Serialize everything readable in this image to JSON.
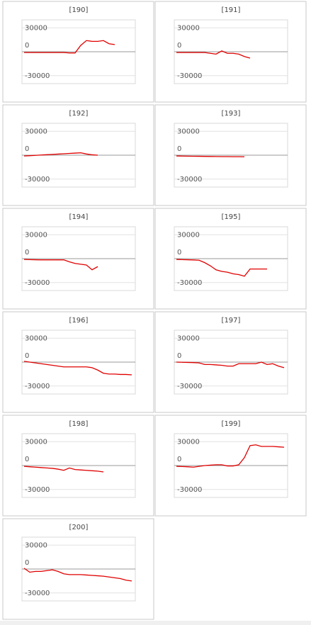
{
  "chart_data": [
    {
      "type": "line",
      "title": "[190]",
      "ylim": [
        -40000,
        40000
      ],
      "yticks": [
        30000,
        0,
        -30000
      ],
      "grid": true,
      "color": "#e00000",
      "values": [
        -1000,
        -1000,
        -1000,
        -1000,
        -1000,
        -1000,
        -1000,
        -1000,
        -1500,
        -1500,
        8000,
        14000,
        13000,
        13000,
        14000,
        10000,
        9000
      ]
    },
    {
      "type": "line",
      "title": "[191]",
      "ylim": [
        -40000,
        40000
      ],
      "yticks": [
        30000,
        0,
        -30000
      ],
      "grid": true,
      "color": "#e00000",
      "values": [
        -1000,
        -1000,
        -1000,
        -1000,
        -1000,
        -1000,
        -2000,
        -3000,
        1000,
        -2000,
        -2000,
        -3000,
        -6000,
        -8000
      ]
    },
    {
      "type": "line",
      "title": "[192]",
      "ylim": [
        -40000,
        40000
      ],
      "yticks": [
        30000,
        0,
        -30000
      ],
      "grid": true,
      "color": "#e00000",
      "values": [
        -1000,
        -600,
        -200,
        200,
        600,
        1000,
        1400,
        1800,
        2200,
        2600,
        3000,
        1500,
        500,
        0
      ]
    },
    {
      "type": "line",
      "title": "[193]",
      "ylim": [
        -40000,
        40000
      ],
      "yticks": [
        30000,
        0,
        -30000
      ],
      "grid": true,
      "color": "#e00000",
      "values": [
        -1000,
        -1100,
        -1200,
        -1300,
        -1400,
        -1500,
        -1600,
        -1700,
        -1800,
        -1800,
        -1900,
        -1900,
        -2000
      ]
    },
    {
      "type": "line",
      "title": "[194]",
      "ylim": [
        -40000,
        40000
      ],
      "yticks": [
        30000,
        0,
        -30000
      ],
      "grid": true,
      "color": "#e00000",
      "values": [
        -1000,
        -1200,
        -1400,
        -1500,
        -1500,
        -1500,
        -1500,
        -1500,
        -4000,
        -6000,
        -7000,
        -8000,
        -14000,
        -10000
      ]
    },
    {
      "type": "line",
      "title": "[195]",
      "ylim": [
        -40000,
        40000
      ],
      "yticks": [
        30000,
        0,
        -30000
      ],
      "grid": true,
      "color": "#e00000",
      "values": [
        -1000,
        -1200,
        -1400,
        -1600,
        -2000,
        -5000,
        -9000,
        -14000,
        -16000,
        -17000,
        -19000,
        -20000,
        -22000,
        -13000,
        -13000,
        -13000,
        -13000
      ]
    },
    {
      "type": "line",
      "title": "[196]",
      "ylim": [
        -40000,
        40000
      ],
      "yticks": [
        30000,
        0,
        -30000
      ],
      "grid": true,
      "color": "#e00000",
      "values": [
        1000,
        0,
        -1000,
        -2000,
        -3000,
        -4000,
        -5000,
        -6000,
        -6000,
        -6000,
        -6000,
        -6000,
        -7000,
        -10000,
        -14000,
        -15000,
        -15000,
        -15500,
        -15500,
        -16000
      ]
    },
    {
      "type": "line",
      "title": "[197]",
      "ylim": [
        -40000,
        40000
      ],
      "yticks": [
        30000,
        0,
        -30000
      ],
      "grid": true,
      "color": "#e00000",
      "values": [
        0,
        -200,
        -400,
        -600,
        -1000,
        -3000,
        -3000,
        -3500,
        -4000,
        -5000,
        -5000,
        -2000,
        -2000,
        -2000,
        -2000,
        0,
        -3000,
        -2000,
        -5000,
        -7000
      ]
    },
    {
      "type": "line",
      "title": "[198]",
      "ylim": [
        -40000,
        40000
      ],
      "yticks": [
        30000,
        0,
        -30000
      ],
      "grid": true,
      "color": "#e00000",
      "values": [
        -1000,
        -1500,
        -2000,
        -2500,
        -3000,
        -3500,
        -4500,
        -6000,
        -3000,
        -5000,
        -5500,
        -6000,
        -6500,
        -7000,
        -8000
      ]
    },
    {
      "type": "line",
      "title": "[199]",
      "ylim": [
        -40000,
        40000
      ],
      "yticks": [
        30000,
        0,
        -30000
      ],
      "grid": true,
      "color": "#e00000",
      "values": [
        -1000,
        -1200,
        -1500,
        -2000,
        -1000,
        0,
        500,
        1000,
        1000,
        -500,
        -500,
        1000,
        10000,
        25000,
        26000,
        24000,
        24000,
        24000,
        23500,
        23000
      ]
    },
    {
      "type": "line",
      "title": "[200]",
      "ylim": [
        -40000,
        40000
      ],
      "yticks": [
        30000,
        0,
        -30000
      ],
      "grid": true,
      "color": "#e00000",
      "values": [
        1000,
        -4000,
        -3000,
        -3000,
        -2000,
        -1000,
        -3000,
        -6000,
        -7000,
        -7000,
        -7000,
        -7500,
        -8000,
        -8500,
        -9000,
        -10000,
        -11000,
        -12000,
        -14000,
        -15000
      ]
    }
  ]
}
